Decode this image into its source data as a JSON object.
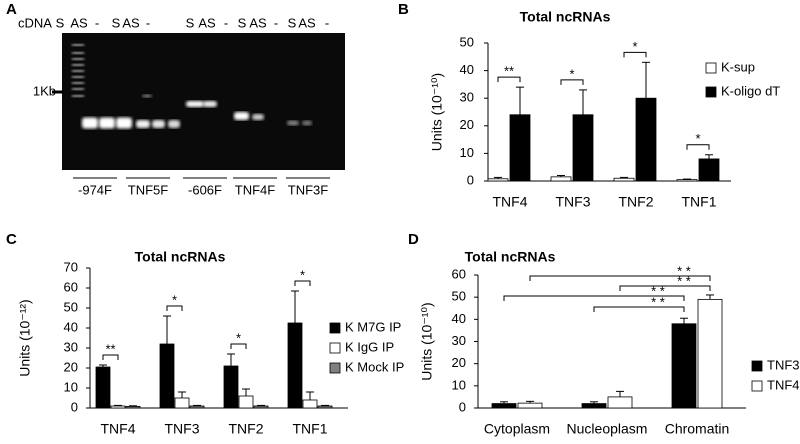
{
  "gel": {
    "panel_label": "A",
    "cdna_label": "cDNA",
    "marker_label": "1Kb",
    "lanes": [
      {
        "name": "-974F",
        "labels": [
          "S",
          "AS",
          "-"
        ]
      },
      {
        "name": "TNF5F",
        "labels": [
          "S",
          "AS",
          "-"
        ]
      },
      {
        "name": "-606F",
        "labels": [
          "S",
          "AS",
          "-"
        ]
      },
      {
        "name": "TNF4F",
        "labels": [
          "S",
          "AS",
          "-"
        ]
      },
      {
        "name": "TNF3F",
        "labels": [
          "S",
          "AS",
          "-"
        ]
      }
    ]
  },
  "chart_data": [
    {
      "type": "bar",
      "panel_label": "B",
      "title": "Total ncRNAs",
      "y_label": "Units (10⁻¹⁰)",
      "categories": [
        "TNF4",
        "TNF3",
        "TNF2",
        "TNF1"
      ],
      "series": [
        {
          "name": "K-sup",
          "color": "#ffffff",
          "values": [
            0.8,
            1.5,
            1,
            0.5
          ],
          "errors": [
            0.5,
            0.5,
            0.3,
            0.2
          ]
        },
        {
          "name": "K-oligo dT",
          "color": "#000000",
          "values": [
            24,
            24,
            30,
            8
          ],
          "errors": [
            10,
            9,
            13,
            1.5
          ]
        }
      ],
      "significance": [
        "**",
        "*",
        "*",
        "*"
      ],
      "ylim": [
        0,
        50
      ],
      "yticks": [
        0,
        10,
        20,
        30,
        40,
        50
      ],
      "legend": "right"
    },
    {
      "type": "bar",
      "panel_label": "C",
      "title": "Total ncRNAs",
      "y_label": "Units (10⁻¹²)",
      "categories": [
        "TNF4",
        "TNF3",
        "TNF2",
        "TNF1"
      ],
      "series": [
        {
          "name": "K M7G IP",
          "color": "#000000",
          "values": [
            20.5,
            32,
            21,
            42.5
          ],
          "errors": [
            1,
            14,
            6,
            16
          ]
        },
        {
          "name": "K IgG IP",
          "color": "#ffffff",
          "values": [
            1,
            5,
            6,
            4
          ],
          "errors": [
            0.3,
            3,
            3.5,
            4
          ]
        },
        {
          "name": "K Mock IP",
          "color": "#808080",
          "values": [
            0.8,
            1,
            1,
            1
          ],
          "errors": [
            0.3,
            0.3,
            0.3,
            0.3
          ]
        }
      ],
      "significance": [
        "**",
        "*",
        "*",
        "*"
      ],
      "ylim": [
        0,
        70
      ],
      "yticks": [
        0,
        10,
        20,
        30,
        40,
        50,
        60,
        70
      ],
      "legend": "right"
    },
    {
      "type": "bar",
      "panel_label": "D",
      "title": "Total ncRNAs",
      "y_label": "Units (10⁻¹⁰)",
      "categories": [
        "Cytoplasm",
        "Nucleoplasm",
        "Chromatin"
      ],
      "series": [
        {
          "name": "TNF3",
          "color": "#000000",
          "values": [
            2,
            2,
            38
          ],
          "errors": [
            0.8,
            0.8,
            2.5
          ]
        },
        {
          "name": "TNF4",
          "color": "#ffffff",
          "values": [
            2.2,
            5,
            49
          ],
          "errors": [
            0.8,
            2.5,
            2
          ]
        }
      ],
      "annotations": [
        "* *",
        "* *",
        "* *",
        "* *"
      ],
      "ylim": [
        0,
        60
      ],
      "yticks": [
        0,
        10,
        20,
        30,
        40,
        50,
        60
      ],
      "legend": "right"
    }
  ]
}
